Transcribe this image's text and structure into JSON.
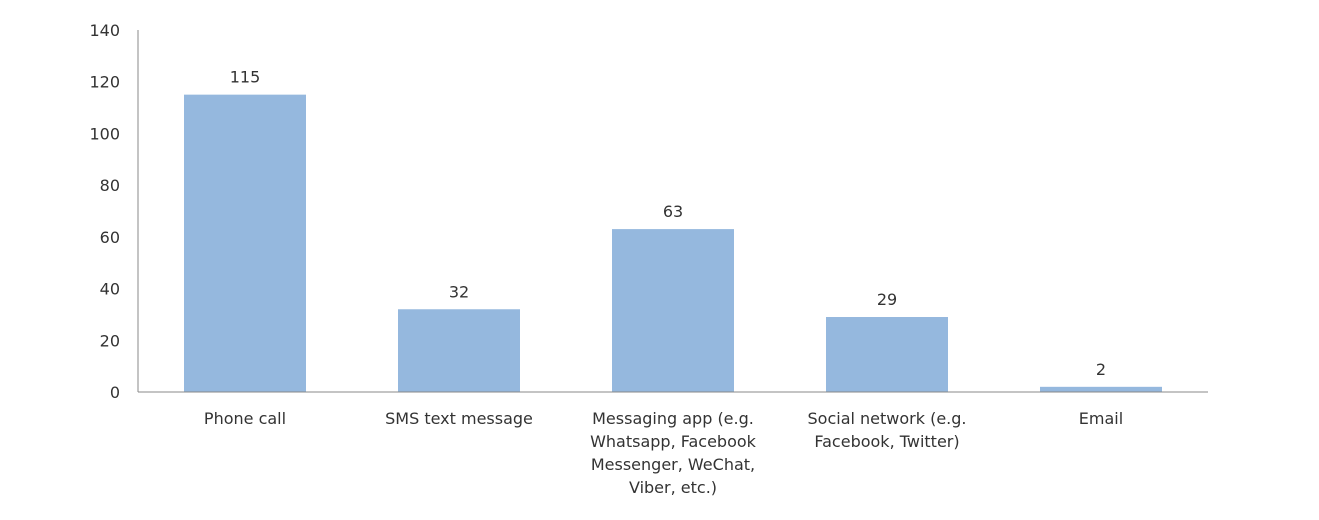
{
  "chart_data": {
    "type": "bar",
    "categories": [
      [
        "Phone call"
      ],
      [
        "SMS text message"
      ],
      [
        "Messaging app (e.g.",
        "Whatsapp, Facebook",
        "Messenger, WeChat,",
        "Viber, etc.)"
      ],
      [
        "Social network (e.g.",
        "Facebook, Twitter)"
      ],
      [
        "Email"
      ]
    ],
    "values": [
      115,
      32,
      63,
      29,
      2
    ],
    "title": "",
    "xlabel": "",
    "ylabel": "",
    "ylim": [
      0,
      140
    ],
    "yticks": [
      0,
      20,
      40,
      60,
      80,
      100,
      120,
      140
    ],
    "grid": false,
    "data_labels": true,
    "bar_color": "#95b8de",
    "axis_color": "#888888",
    "text_color": "#333333"
  }
}
